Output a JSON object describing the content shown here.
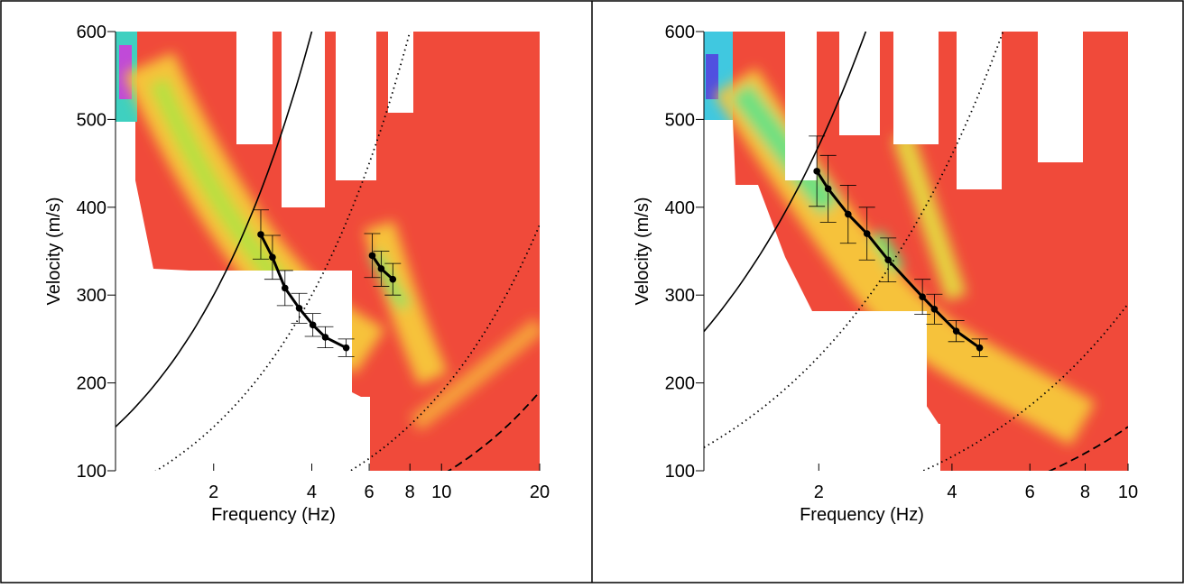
{
  "chart_data": [
    {
      "type": "dispersion",
      "x_label": "Frequency (Hz)",
      "y_label": "Velocity (m/s)",
      "x_log": true,
      "xlim": [
        1,
        20
      ],
      "xticks": [
        2,
        4,
        6,
        8,
        10,
        20
      ],
      "ylim": [
        100,
        600
      ],
      "yticks": [
        100,
        200,
        300,
        400,
        500,
        600
      ],
      "series": [
        {
          "color": "#000000",
          "x": [
            2.79,
            3.03,
            3.31,
            3.66,
            4.03,
            4.4,
            5.1
          ],
          "values": [
            369,
            343,
            308,
            285,
            266,
            252,
            240
          ],
          "errors": [
            28,
            25,
            20,
            17,
            13,
            12,
            10
          ]
        },
        {
          "color": "#000000",
          "x": [
            6.13,
            6.53,
            7.09
          ],
          "values": [
            345,
            330,
            318
          ],
          "errors": [
            25,
            20,
            18
          ]
        }
      ],
      "wavelength_curves": [
        {
          "style": "solid",
          "wavelength": 150
        },
        {
          "style": "dotted",
          "wavelength": 75
        },
        {
          "style": "dotted",
          "wavelength": 19
        },
        {
          "style": "dashed",
          "wavelength": 9.5
        }
      ]
    },
    {
      "type": "dispersion",
      "x_label": "Frequency (Hz)",
      "y_label": "Velocity (m/s)",
      "x_log": true,
      "xlim": [
        1.1,
        10
      ],
      "xticks": [
        2,
        4,
        6,
        8,
        10
      ],
      "ylim": [
        100,
        600
      ],
      "yticks": [
        100,
        200,
        300,
        400,
        500,
        600
      ],
      "series": [
        {
          "color": "#000000",
          "x": [
            1.98,
            2.1,
            2.33,
            2.57,
            2.87,
            3.43,
            3.65,
            4.09,
            4.62
          ],
          "values": [
            441,
            421,
            392,
            370,
            340,
            298,
            284,
            259,
            240
          ],
          "errors": [
            40,
            38,
            33,
            30,
            25,
            20,
            17,
            12,
            10
          ]
        }
      ],
      "wavelength_curves": [
        {
          "style": "solid",
          "wavelength": 235
        },
        {
          "style": "dotted",
          "wavelength": 115
        },
        {
          "style": "dotted",
          "wavelength": 29
        },
        {
          "style": "dashed",
          "wavelength": 15
        }
      ]
    }
  ]
}
